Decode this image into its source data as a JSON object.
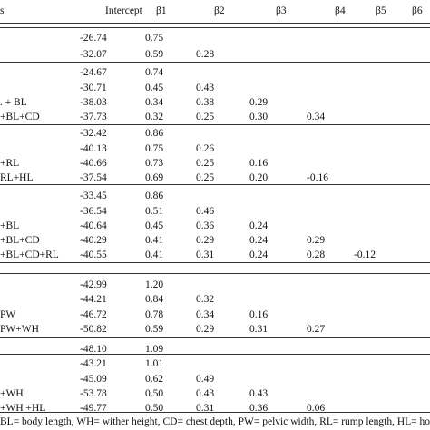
{
  "table": {
    "header": {
      "label": "s",
      "intercept": "Intercept",
      "b1": "β1",
      "b2": "β2",
      "b3": "β3",
      "b4": "β4",
      "b5": "β5",
      "b6": "β6"
    },
    "rows": [
      {
        "label": "",
        "intercept": "-26.74",
        "b1": "0.75",
        "b2": "",
        "b3": "",
        "b4": "",
        "b5": "",
        "b6": ""
      },
      {
        "label": "",
        "intercept": "-32.07",
        "b1": "0.59",
        "b2": "0.28",
        "b3": "",
        "b4": "",
        "b5": "",
        "b6": ""
      },
      {
        "label": "",
        "intercept": "-24.67",
        "b1": "0.74",
        "b2": "",
        "b3": "",
        "b4": "",
        "b5": "",
        "b6": ""
      },
      {
        "label": "",
        "intercept": "-30.71",
        "b1": "0.45",
        "b2": "0.43",
        "b3": "",
        "b4": "",
        "b5": "",
        "b6": ""
      },
      {
        "label": ". + BL",
        "intercept": "-38.03",
        "b1": "0.34",
        "b2": "0.38",
        "b3": "0.29",
        "b4": "",
        "b5": "",
        "b6": ""
      },
      {
        "label": "+BL+CD",
        "intercept": "-37.73",
        "b1": "0.32",
        "b2": "0.25",
        "b3": "0.30",
        "b4": "0.34",
        "b5": "",
        "b6": ""
      },
      {
        "label": "",
        "intercept": "-32.42",
        "b1": "0.86",
        "b2": "",
        "b3": "",
        "b4": "",
        "b5": "",
        "b6": ""
      },
      {
        "label": "",
        "intercept": "-40.13",
        "b1": "0.75",
        "b2": "0.26",
        "b3": "",
        "b4": "",
        "b5": "",
        "b6": ""
      },
      {
        "label": "+RL",
        "intercept": "-40.66",
        "b1": "0.73",
        "b2": "0.25",
        "b3": "0.16",
        "b4": "",
        "b5": "",
        "b6": ""
      },
      {
        "label": "RL+HL",
        "intercept": "-37.54",
        "b1": "0.69",
        "b2": "0.25",
        "b3": "0.20",
        "b4": "-0.16",
        "b5": "",
        "b6": ""
      },
      {
        "label": "",
        "intercept": "-33.45",
        "b1": "0.86",
        "b2": "",
        "b3": "",
        "b4": "",
        "b5": "",
        "b6": ""
      },
      {
        "label": "",
        "intercept": "-36.54",
        "b1": "0.51",
        "b2": "0.46",
        "b3": "",
        "b4": "",
        "b5": "",
        "b6": ""
      },
      {
        "label": "+BL",
        "intercept": "-40.64",
        "b1": "0.45",
        "b2": "0.36",
        "b3": "0.24",
        "b4": "",
        "b5": "",
        "b6": ""
      },
      {
        "label": "+BL+CD",
        "intercept": "-40.29",
        "b1": "0.41",
        "b2": "0.29",
        "b3": "0.24",
        "b4": "0.29",
        "b5": "",
        "b6": ""
      },
      {
        "label": "+BL+CD+RL",
        "intercept": "-40.55",
        "b1": "0.41",
        "b2": "0.31",
        "b3": "0.24",
        "b4": "0.28",
        "b5": "-0.12",
        "b6": ""
      },
      {
        "label": "",
        "intercept": "-42.99",
        "b1": "1.20",
        "b2": "",
        "b3": "",
        "b4": "",
        "b5": "",
        "b6": ""
      },
      {
        "label": "",
        "intercept": "-44.21",
        "b1": "0.84",
        "b2": "0.32",
        "b3": "",
        "b4": "",
        "b5": "",
        "b6": ""
      },
      {
        "label": "PW",
        "intercept": "-46.72",
        "b1": "0.78",
        "b2": "0.34",
        "b3": "0.16",
        "b4": "",
        "b5": "",
        "b6": ""
      },
      {
        "label": "PW+WH",
        "intercept": "-50.82",
        "b1": "0.59",
        "b2": "0.29",
        "b3": "0.31",
        "b4": "0.27",
        "b5": "",
        "b6": ""
      },
      {
        "label": "",
        "intercept": "-48.10",
        "b1": "1.09",
        "b2": "",
        "b3": "",
        "b4": "",
        "b5": "",
        "b6": ""
      },
      {
        "label": "",
        "intercept": "-43.21",
        "b1": "1.01",
        "b2": "",
        "b3": "",
        "b4": "",
        "b5": "",
        "b6": ""
      },
      {
        "label": "",
        "intercept": "-45.09",
        "b1": "0.62",
        "b2": "0.49",
        "b3": "",
        "b4": "",
        "b5": "",
        "b6": ""
      },
      {
        "label": "+WH",
        "intercept": "-53.78",
        "b1": "0.50",
        "b2": "0.43",
        "b3": "0.43",
        "b4": "",
        "b5": "",
        "b6": ""
      },
      {
        "label": "+WH +HL",
        "intercept": "-49.77",
        "b1": "0.50",
        "b2": "0.31",
        "b3": "0.36",
        "b4": "0.06",
        "b5": "",
        "b6": ""
      }
    ],
    "footnote": "BL= body length, WH= wither height, CD= chest depth, PW= pelvic width, RL= rump length, HL= horn le"
  }
}
